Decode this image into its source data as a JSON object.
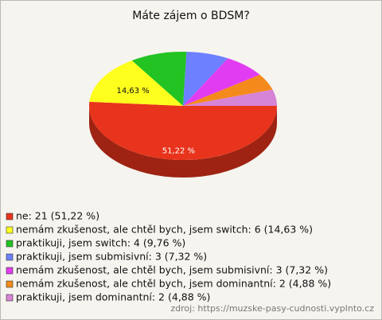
{
  "chart_data": {
    "type": "pie",
    "title": "Máte zájem o BDSM?",
    "categories": [
      "ne: 21 (51,22 %)",
      "nemám zkušenost, ale chtěl bych, jsem switch: 6 (14,63 %)",
      "praktikuji, jsem switch: 4 (9,76 %)",
      "praktikuji, jsem submisivní: 3 (7,32 %)",
      "nemám zkušenost, ale chtěl bych, jsem submisivní: 3 (7,32 %)",
      "nemám zkušenost, ale chtěl bych, jsem dominantní: 2 (4,88 %)",
      "praktikuji, jsem dominantní: 2 (4,88 %)"
    ],
    "values": [
      51.22,
      14.63,
      9.76,
      7.32,
      7.32,
      4.88,
      4.88
    ],
    "value_labels": [
      "51,22 %",
      "14,63 %",
      null,
      null,
      null,
      null,
      null
    ],
    "colors": [
      "#e8341c",
      "#ffff1e",
      "#22c322",
      "#6d80ff",
      "#e23cf2",
      "#f58a1c",
      "#d684d6"
    ],
    "source": "zdroj: https://muzske-pasy-cudnosti.vyplnto.cz"
  }
}
